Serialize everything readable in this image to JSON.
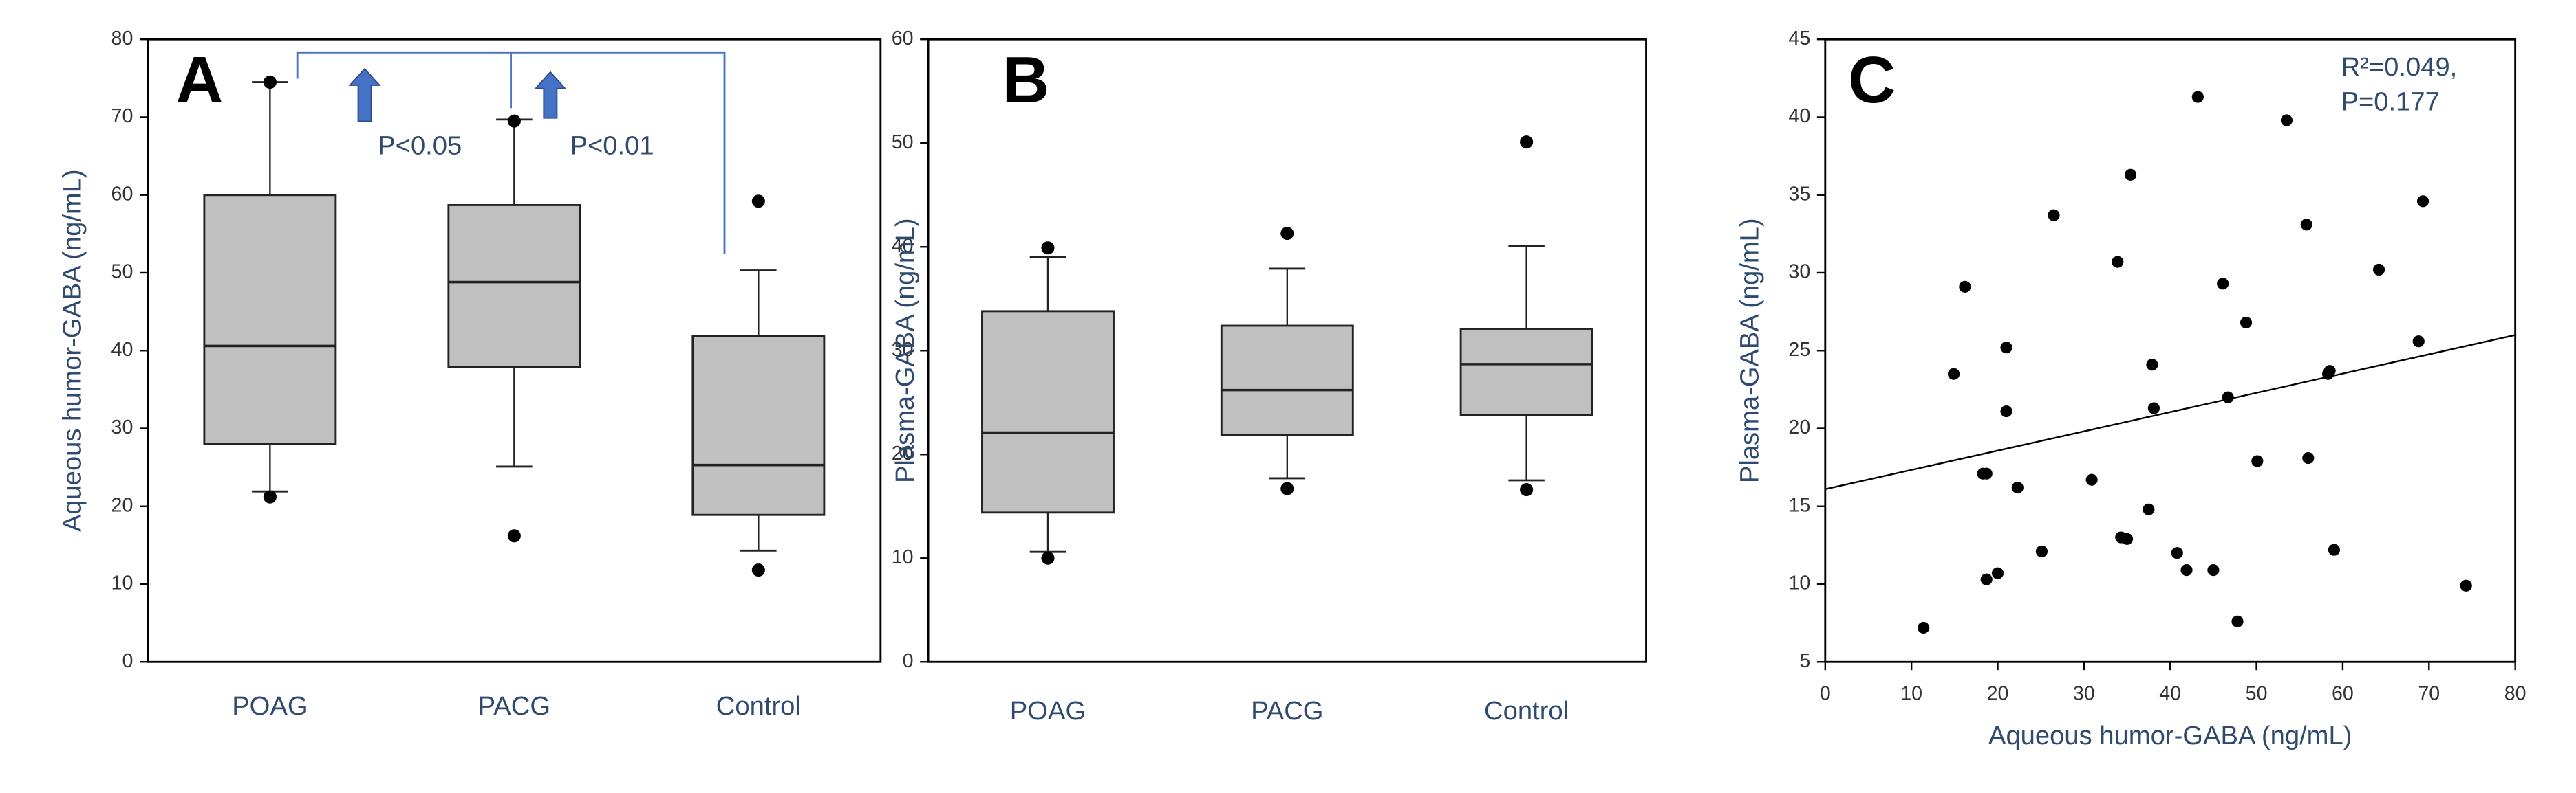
{
  "chart_data": [
    {
      "type": "box",
      "panel_label": "A",
      "ylabel": "Aqueous humor-GABA (ng/mL)",
      "categories": [
        "POAG",
        "PACG",
        "Control"
      ],
      "color": "#c0c0c0",
      "ylim": [
        0,
        80
      ],
      "yticks": [
        0,
        10,
        20,
        30,
        40,
        50,
        60,
        70,
        80
      ],
      "boxes": [
        {
          "whisker_low": 21.9,
          "q1": 28,
          "median": 40.6,
          "q3": 60,
          "whisker_high": 74.5,
          "outliers": [
            74.5,
            21.2
          ]
        },
        {
          "whisker_low": 25.1,
          "q1": 37.9,
          "median": 48.8,
          "q3": 58.7,
          "whisker_high": 69.7,
          "outliers": [
            69.5,
            16.2
          ]
        },
        {
          "whisker_low": 14.3,
          "q1": 18.9,
          "median": 25.3,
          "q3": 41.9,
          "whisker_high": 50.3,
          "outliers": [
            59.2,
            11.8
          ]
        }
      ],
      "annotations": [
        "P<0.05",
        "P<0.01"
      ]
    },
    {
      "type": "box",
      "panel_label": "B",
      "ylabel": "Plasma-GABA (ng/mL)",
      "categories": [
        "POAG",
        "PACG",
        "Control"
      ],
      "color": "#c0c0c0",
      "ylim": [
        0,
        60
      ],
      "yticks": [
        0,
        10,
        20,
        30,
        40,
        50,
        60
      ],
      "boxes": [
        {
          "whisker_low": 10.6,
          "q1": 14.4,
          "median": 22.1,
          "q3": 33.8,
          "whisker_high": 39,
          "outliers": [
            39.9,
            10
          ]
        },
        {
          "whisker_low": 17.7,
          "q1": 21.9,
          "median": 26.2,
          "q3": 32.4,
          "whisker_high": 37.9,
          "outliers": [
            41.3,
            16.7
          ]
        },
        {
          "whisker_low": 17.5,
          "q1": 23.8,
          "median": 28.7,
          "q3": 32.1,
          "whisker_high": 40.1,
          "outliers": [
            50.1,
            16.6
          ]
        }
      ],
      "annotations": []
    },
    {
      "type": "scatter",
      "panel_label": "C",
      "xlabel": "Aqueous humor-GABA (ng/mL)",
      "ylabel": "Plasma-GABA (ng/mL)",
      "color": "#000000",
      "xlim": [
        0,
        80
      ],
      "xticks": [
        0,
        10,
        20,
        30,
        40,
        50,
        60,
        70,
        80
      ],
      "ylim": [
        5,
        45
      ],
      "yticks": [
        5,
        10,
        15,
        20,
        25,
        30,
        35,
        40,
        45
      ],
      "x": [
        11.4,
        14.9,
        16.2,
        18.3,
        18.7,
        18.7,
        20.0,
        21.0,
        21.0,
        22.3,
        25.1,
        26.5,
        30.9,
        33.9,
        34.3,
        35.0,
        35.4,
        37.5,
        37.9,
        38.1,
        40.8,
        41.9,
        43.2,
        45.0,
        46.1,
        46.7,
        47.8,
        48.8,
        50.1,
        53.5,
        55.8,
        56.0,
        58.3,
        58.5,
        59.0,
        64.2,
        68.8,
        69.3,
        74.3
      ],
      "y": [
        7.2,
        23.5,
        29.1,
        17.1,
        17.1,
        10.3,
        10.7,
        25.2,
        21.1,
        16.2,
        12.1,
        33.7,
        16.7,
        30.7,
        13.0,
        12.9,
        36.3,
        14.8,
        24.1,
        21.3,
        12.0,
        10.9,
        41.3,
        10.9,
        29.3,
        22.0,
        7.6,
        26.8,
        17.9,
        39.8,
        33.1,
        18.1,
        23.5,
        23.7,
        12.2,
        30.2,
        25.6,
        34.6,
        9.9
      ],
      "trendline": {
        "x": [
          0,
          80
        ],
        "y": [
          16.1,
          26.0
        ]
      },
      "annotations": [
        "R²=0.049,",
        "P=0.177"
      ]
    }
  ]
}
